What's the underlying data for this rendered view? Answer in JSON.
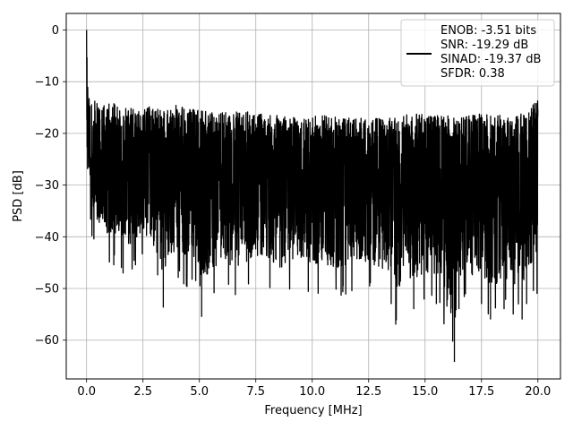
{
  "chart_data": {
    "type": "line",
    "title": "",
    "xlabel": "Frequency [MHz]",
    "ylabel": "PSD [dB]",
    "xlim": [
      -0.9,
      21.0
    ],
    "ylim": [
      -67.5,
      3.2
    ],
    "grid": true,
    "line_color": "#000000",
    "legend": {
      "placement": "top-right",
      "entries": [
        "ENOB: -3.51 bits",
        "SNR: -19.29 dB",
        "SINAD: -19.37 dB",
        "SFDR: 0.38"
      ]
    },
    "x_ticks": [
      {
        "value": 0.0,
        "label": "0.0"
      },
      {
        "value": 2.5,
        "label": "2.5"
      },
      {
        "value": 5.0,
        "label": "5.0"
      },
      {
        "value": 7.5,
        "label": "7.5"
      },
      {
        "value": 10.0,
        "label": "10.0"
      },
      {
        "value": 12.5,
        "label": "12.5"
      },
      {
        "value": 15.0,
        "label": "15.0"
      },
      {
        "value": 17.5,
        "label": "17.5"
      },
      {
        "value": 20.0,
        "label": "20.0"
      }
    ],
    "y_ticks": [
      {
        "value": 0,
        "label": "0"
      },
      {
        "value": -10,
        "label": "−10"
      },
      {
        "value": -20,
        "label": "−20"
      },
      {
        "value": -30,
        "label": "−30"
      },
      {
        "value": -40,
        "label": "−40"
      },
      {
        "value": -50,
        "label": "−50"
      },
      {
        "value": -60,
        "label": "−60"
      }
    ],
    "series": [
      {
        "x": [
          0.0,
          0.03,
          0.06,
          0.1,
          0.15,
          0.2,
          0.3,
          0.5,
          1.0,
          1.6,
          2.0,
          2.5,
          3.0,
          3.4,
          4.0,
          4.5,
          5.0,
          5.1,
          6.0,
          6.5,
          7.5,
          8.5,
          9.5,
          10.5,
          11.5,
          12.5,
          13.5,
          13.7,
          14.5,
          15.5,
          16.3,
          16.5,
          17.5,
          17.9,
          18.5,
          19.3,
          19.5,
          20.0
        ],
        "y_upper": [
          0.0,
          -8.0,
          -10.5,
          -11.5,
          -12.0,
          -13.0,
          -13.5,
          -14.0,
          -14.0,
          -14.5,
          -15.0,
          -14.5,
          -15.0,
          -15.5,
          -14.5,
          -15.0,
          -15.5,
          -15.5,
          -16.0,
          -15.5,
          -16.0,
          -16.5,
          -17.0,
          -16.5,
          -17.0,
          -17.0,
          -17.0,
          -17.0,
          -16.0,
          -16.5,
          -16.5,
          -17.0,
          -16.0,
          -16.5,
          -16.5,
          -15.5,
          -16.5,
          -13.0
        ],
        "y_lower": [
          -24.0,
          -33.0,
          -36.0,
          -35.0,
          -36.0,
          -40.0,
          -42.0,
          -44.0,
          -46.0,
          -47.0,
          -48.0,
          -45.0,
          -48.0,
          -53.7,
          -48.0,
          -50.0,
          -51.0,
          -55.5,
          -50.0,
          -52.0,
          -50.0,
          -52.0,
          -51.0,
          -52.0,
          -52.0,
          -51.0,
          -53.0,
          -57.0,
          -54.0,
          -53.0,
          -64.2,
          -54.0,
          -53.0,
          -56.0,
          -54.0,
          -56.0,
          -53.0,
          -52.0
        ],
        "y_mean": [
          0.0,
          -16.0,
          -19.0,
          -20.0,
          -21.0,
          -24.0,
          -25.0,
          -26.0,
          -27.0,
          -27.5,
          -28.0,
          -28.0,
          -28.0,
          -28.0,
          -28.0,
          -28.5,
          -28.5,
          -28.5,
          -29.0,
          -29.0,
          -29.0,
          -29.0,
          -29.0,
          -29.0,
          -29.0,
          -29.0,
          -29.0,
          -29.0,
          -29.0,
          -29.0,
          -29.0,
          -29.0,
          -29.0,
          -29.0,
          -29.0,
          -29.0,
          -29.0,
          -29.0
        ]
      }
    ]
  }
}
